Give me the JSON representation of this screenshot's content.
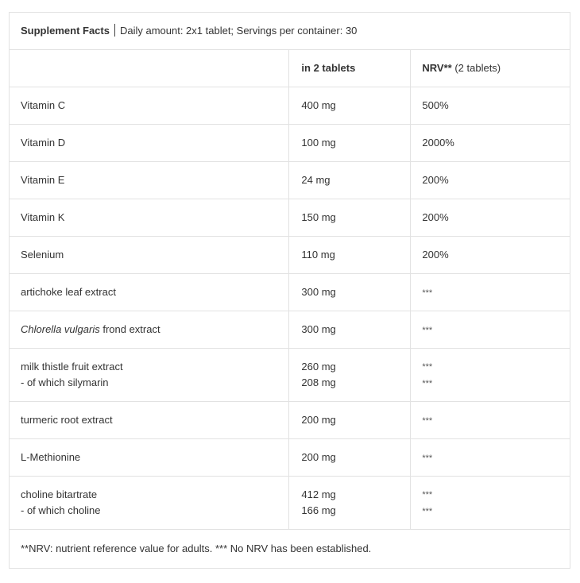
{
  "header": {
    "title": "Supplement Facts",
    "subtitle": "Daily amount: 2x1 tablet; Servings per container: 30"
  },
  "columns": {
    "amount": "in 2 tablets",
    "nrv_bold": "NRV**",
    "nrv_rest": " (2 tablets)"
  },
  "rows": [
    {
      "name": [
        "Vitamin C"
      ],
      "amount": [
        "400 mg"
      ],
      "nrv": [
        "500%"
      ]
    },
    {
      "name": [
        "Vitamin D"
      ],
      "amount": [
        "100 mg"
      ],
      "nrv": [
        "2000%"
      ]
    },
    {
      "name": [
        "Vitamin E"
      ],
      "amount": [
        "24 mg"
      ],
      "nrv": [
        "200%"
      ]
    },
    {
      "name": [
        "Vitamin K"
      ],
      "amount": [
        "150 mg"
      ],
      "nrv": [
        "200%"
      ]
    },
    {
      "name": [
        "Selenium"
      ],
      "amount": [
        "110 mg"
      ],
      "nrv": [
        "200%"
      ]
    },
    {
      "name": [
        "artichoke leaf extract"
      ],
      "amount": [
        "300 mg"
      ],
      "nrv": [
        "***"
      ]
    },
    {
      "name_italic": "Chlorella vulgaris",
      "name": [
        " frond extract"
      ],
      "amount": [
        "300 mg"
      ],
      "nrv": [
        "***"
      ]
    },
    {
      "name": [
        "milk thistle fruit extract",
        "- of which silymarin"
      ],
      "amount": [
        "260 mg",
        "208 mg"
      ],
      "nrv": [
        "***",
        "***"
      ]
    },
    {
      "name": [
        "turmeric root extract"
      ],
      "amount": [
        "200 mg"
      ],
      "nrv": [
        "***"
      ]
    },
    {
      "name": [
        "L-Methionine"
      ],
      "amount": [
        "200 mg"
      ],
      "nrv": [
        "***"
      ]
    },
    {
      "name": [
        "choline bitartrate",
        "- of which choline"
      ],
      "amount": [
        "412 mg",
        "166 mg"
      ],
      "nrv": [
        "***",
        "***"
      ]
    }
  ],
  "footer": "**NRV: nutrient reference value for adults. *** No NRV has been established."
}
